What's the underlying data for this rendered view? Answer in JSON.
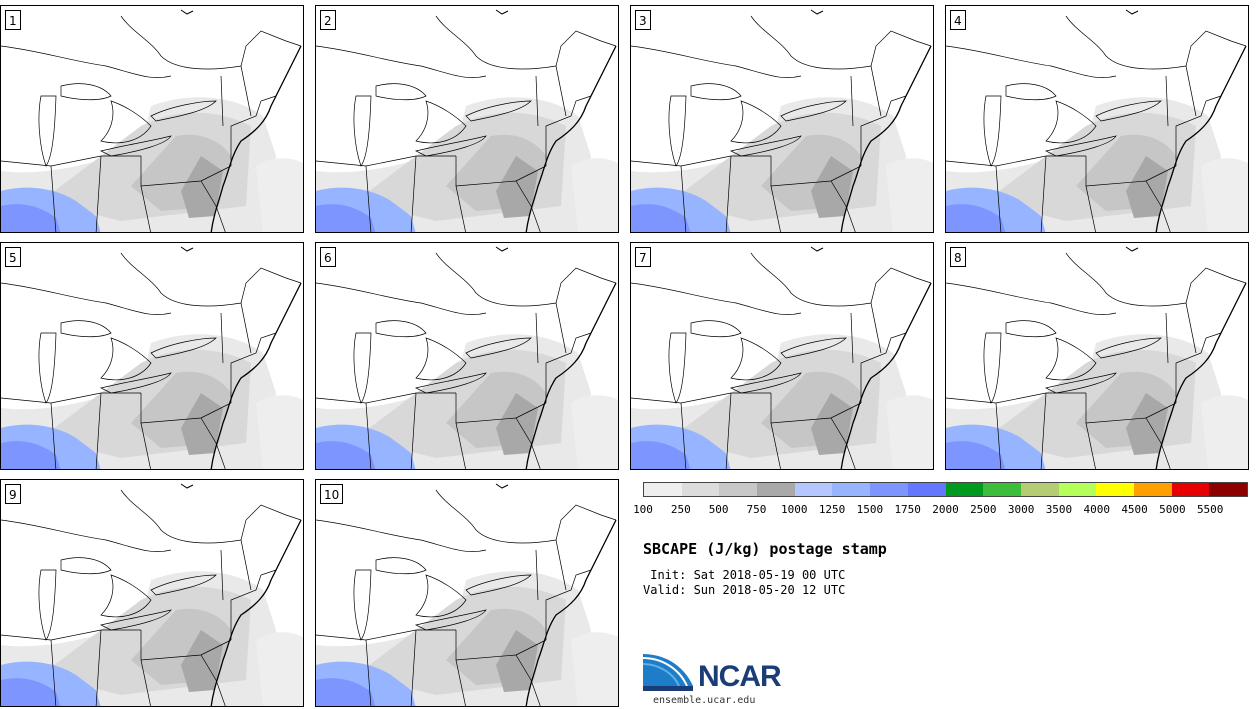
{
  "panels": [
    {
      "label": "1"
    },
    {
      "label": "2"
    },
    {
      "label": "3"
    },
    {
      "label": "4"
    },
    {
      "label": "5"
    },
    {
      "label": "6"
    },
    {
      "label": "7"
    },
    {
      "label": "8"
    },
    {
      "label": "9"
    },
    {
      "label": "10"
    }
  ],
  "legend": {
    "colors": [
      "#eeeeee",
      "#dcdcdc",
      "#c8c8c8",
      "#a9a9a9",
      "#b4c8ff",
      "#96b4ff",
      "#7d96ff",
      "#6478ff",
      "#009b1e",
      "#3cbe3c",
      "#b4cd73",
      "#b4ff5a",
      "#ffff00",
      "#ffa000",
      "#e60000",
      "#8c0000"
    ],
    "ticks": [
      "100",
      "250",
      "500",
      "750",
      "1000",
      "1250",
      "1500",
      "1750",
      "2000",
      "2500",
      "3000",
      "3500",
      "4000",
      "4500",
      "5000",
      "5500"
    ]
  },
  "title": "SBCAPE (J/kg) postage stamp",
  "init": " Init: Sat 2018-05-19 00 UTC",
  "valid": "Valid: Sun 2018-05-20 12 UTC",
  "logo": {
    "name": "NCAR",
    "url_text": "ensemble.ucar.edu"
  }
}
